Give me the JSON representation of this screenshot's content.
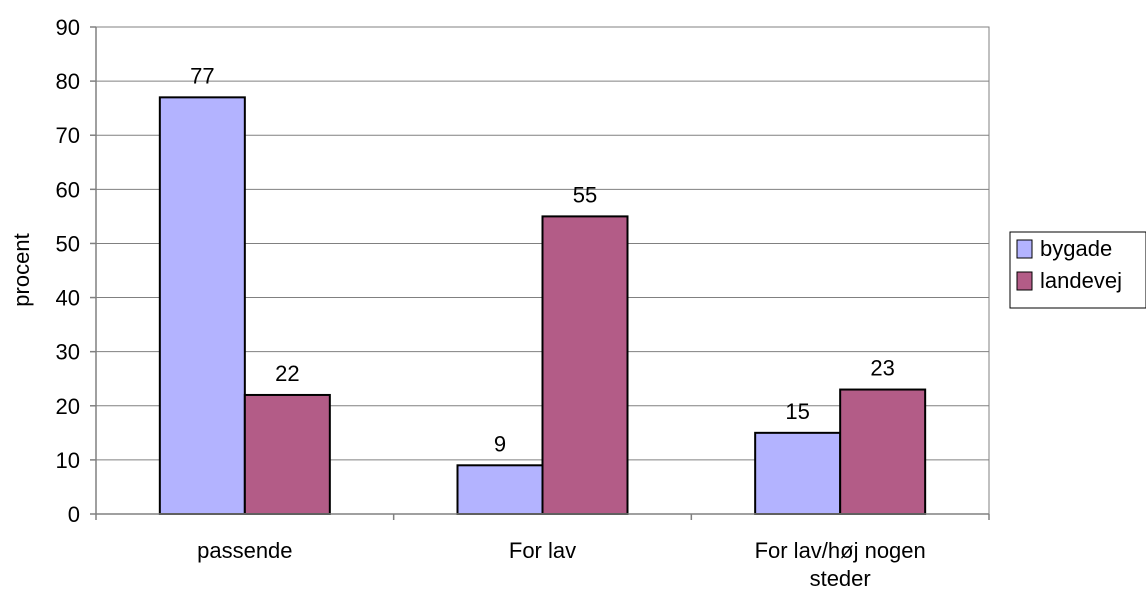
{
  "chart_data": {
    "type": "bar",
    "categories": [
      [
        "passende"
      ],
      [
        "For lav"
      ],
      [
        "For lav/høj nogen",
        "steder"
      ]
    ],
    "series": [
      {
        "name": "bygade",
        "values": [
          77,
          9,
          15
        ],
        "color": "#b3b3ff"
      },
      {
        "name": "landevej",
        "values": [
          22,
          55,
          23
        ],
        "color": "#b35c87"
      }
    ],
    "ylabel": "procent",
    "ylim": [
      0,
      90
    ],
    "yticks": [
      0,
      10,
      20,
      30,
      40,
      50,
      60,
      70,
      80,
      90
    ],
    "grid": true,
    "legend_position": "right"
  }
}
